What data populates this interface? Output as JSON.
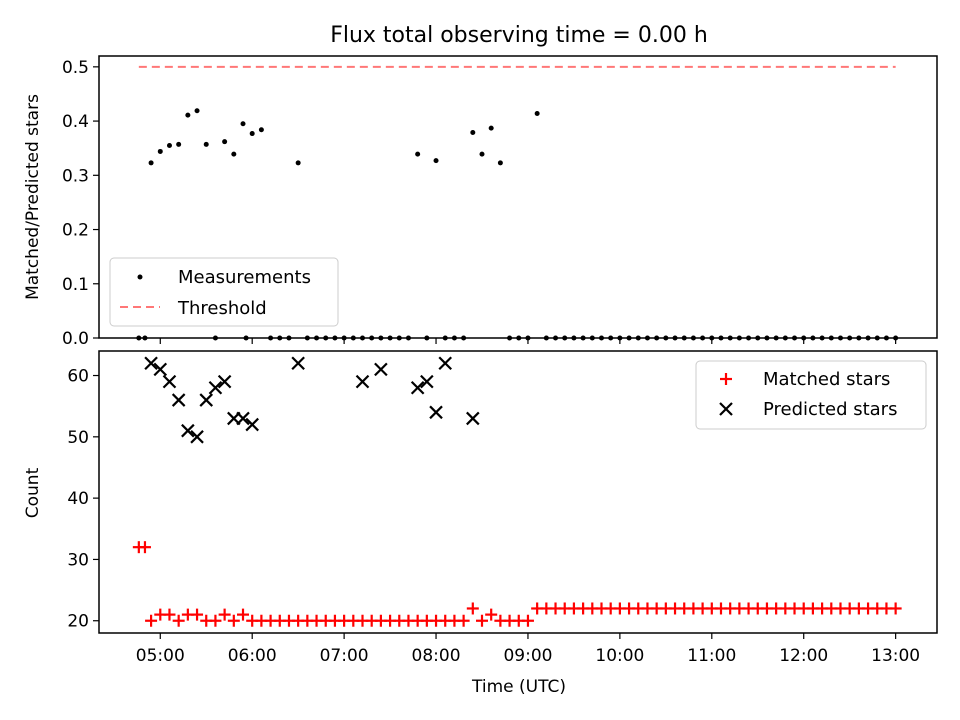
{
  "chart_data": {
    "title": "Flux total observing time = 0.00 h",
    "xlabel": "Time (UTC)",
    "x_ticks": [
      "05:00",
      "06:00",
      "07:00",
      "08:00",
      "09:00",
      "10:00",
      "11:00",
      "12:00",
      "13:00"
    ],
    "x_range": [
      "04:20",
      "13:27"
    ],
    "panels": [
      {
        "type": "scatter",
        "ylabel": "Matched/Predicted stars",
        "ylim": [
          0,
          0.52
        ],
        "yticks": [
          "0.0",
          "0.1",
          "0.2",
          "0.3",
          "0.4",
          "0.5"
        ],
        "legend_position": "lower-left",
        "series": [
          {
            "name": "Measurements",
            "kind": "points",
            "color": "#000000",
            "points": [
              [
                "04:46",
                0
              ],
              [
                "04:50",
                0
              ],
              [
                "04:54",
                0.323
              ],
              [
                "05:00",
                0.344
              ],
              [
                "05:06",
                0.355
              ],
              [
                "05:12",
                0.357
              ],
              [
                "05:18",
                0.411
              ],
              [
                "05:24",
                0.419
              ],
              [
                "05:30",
                0.357
              ],
              [
                "05:36",
                0
              ],
              [
                "05:42",
                0.362
              ],
              [
                "05:48",
                0.339
              ],
              [
                "05:54",
                0.395
              ],
              [
                "06:00",
                0.377
              ],
              [
                "05:56",
                0
              ],
              [
                "06:06",
                0.384
              ],
              [
                "06:12",
                0
              ],
              [
                "06:18",
                0
              ],
              [
                "06:24",
                0
              ],
              [
                "06:30",
                0.323
              ],
              [
                "06:36",
                0
              ],
              [
                "06:42",
                0
              ],
              [
                "06:48",
                0
              ],
              [
                "06:54",
                0
              ],
              [
                "07:00",
                0
              ],
              [
                "07:06",
                0
              ],
              [
                "07:12",
                0
              ],
              [
                "07:18",
                0
              ],
              [
                "07:24",
                0
              ],
              [
                "07:30",
                0
              ],
              [
                "07:36",
                0
              ],
              [
                "07:42",
                0
              ],
              [
                "07:48",
                0.339
              ],
              [
                "07:54",
                0
              ],
              [
                "08:00",
                0.327
              ],
              [
                "08:06",
                0
              ],
              [
                "08:12",
                0
              ],
              [
                "08:18",
                0
              ],
              [
                "08:24",
                0.379
              ],
              [
                "08:30",
                0.339
              ],
              [
                "08:36",
                0.387
              ],
              [
                "08:42",
                0.323
              ],
              [
                "08:48",
                0
              ],
              [
                "08:54",
                0
              ],
              [
                "09:00",
                0
              ],
              [
                "09:06",
                0.414
              ],
              [
                "09:12",
                0
              ],
              [
                "09:18",
                0
              ],
              [
                "09:24",
                0
              ],
              [
                "09:30",
                0
              ],
              [
                "09:36",
                0
              ],
              [
                "09:42",
                0
              ],
              [
                "09:48",
                0
              ],
              [
                "09:54",
                0
              ],
              [
                "10:00",
                0
              ],
              [
                "10:06",
                0
              ],
              [
                "10:12",
                0
              ],
              [
                "10:18",
                0
              ],
              [
                "10:24",
                0
              ],
              [
                "10:30",
                0
              ],
              [
                "10:36",
                0
              ],
              [
                "10:42",
                0
              ],
              [
                "10:48",
                0
              ],
              [
                "10:54",
                0
              ],
              [
                "11:00",
                0
              ],
              [
                "11:06",
                0
              ],
              [
                "11:12",
                0
              ],
              [
                "11:18",
                0
              ],
              [
                "11:24",
                0
              ],
              [
                "11:30",
                0
              ],
              [
                "11:36",
                0
              ],
              [
                "11:42",
                0
              ],
              [
                "11:48",
                0
              ],
              [
                "11:54",
                0
              ],
              [
                "12:00",
                0
              ],
              [
                "12:06",
                0
              ],
              [
                "12:12",
                0
              ],
              [
                "12:18",
                0
              ],
              [
                "12:24",
                0
              ],
              [
                "12:30",
                0
              ],
              [
                "12:36",
                0
              ],
              [
                "12:42",
                0
              ],
              [
                "12:48",
                0
              ],
              [
                "12:54",
                0
              ],
              [
                "13:00",
                0
              ]
            ]
          },
          {
            "name": "Threshold",
            "kind": "dashed-line",
            "color": "#ff7777",
            "x": [
              "04:46",
              "13:00"
            ],
            "y": [
              0.5,
              0.5
            ]
          }
        ]
      },
      {
        "type": "scatter",
        "ylabel": "Count",
        "ylim": [
          18,
          64
        ],
        "yticks": [
          "20",
          "30",
          "40",
          "50",
          "60"
        ],
        "legend_position": "upper-right",
        "series": [
          {
            "name": "Matched stars",
            "kind": "plus",
            "color": "#ff0000",
            "points": [
              [
                "04:46",
                32
              ],
              [
                "04:50",
                32
              ],
              [
                "04:54",
                20
              ],
              [
                "05:00",
                21
              ],
              [
                "05:06",
                21
              ],
              [
                "05:12",
                20
              ],
              [
                "05:18",
                21
              ],
              [
                "05:24",
                21
              ],
              [
                "05:30",
                20
              ],
              [
                "05:36",
                20
              ],
              [
                "05:42",
                21
              ],
              [
                "05:48",
                20
              ],
              [
                "05:54",
                21
              ],
              [
                "06:00",
                20
              ],
              [
                "06:06",
                20
              ],
              [
                "06:12",
                20
              ],
              [
                "06:18",
                20
              ],
              [
                "06:24",
                20
              ],
              [
                "06:30",
                20
              ],
              [
                "06:36",
                20
              ],
              [
                "06:42",
                20
              ],
              [
                "06:48",
                20
              ],
              [
                "06:54",
                20
              ],
              [
                "07:00",
                20
              ],
              [
                "07:06",
                20
              ],
              [
                "07:12",
                20
              ],
              [
                "07:18",
                20
              ],
              [
                "07:24",
                20
              ],
              [
                "07:30",
                20
              ],
              [
                "07:36",
                20
              ],
              [
                "07:42",
                20
              ],
              [
                "07:48",
                20
              ],
              [
                "07:54",
                20
              ],
              [
                "08:00",
                20
              ],
              [
                "08:06",
                20
              ],
              [
                "08:12",
                20
              ],
              [
                "08:18",
                20
              ],
              [
                "08:24",
                22
              ],
              [
                "08:30",
                20
              ],
              [
                "08:36",
                21
              ],
              [
                "08:42",
                20
              ],
              [
                "08:48",
                20
              ],
              [
                "08:54",
                20
              ],
              [
                "09:00",
                20
              ],
              [
                "09:06",
                22
              ],
              [
                "09:12",
                22
              ],
              [
                "09:18",
                22
              ],
              [
                "09:24",
                22
              ],
              [
                "09:30",
                22
              ],
              [
                "09:36",
                22
              ],
              [
                "09:42",
                22
              ],
              [
                "09:48",
                22
              ],
              [
                "09:54",
                22
              ],
              [
                "10:00",
                22
              ],
              [
                "10:06",
                22
              ],
              [
                "10:12",
                22
              ],
              [
                "10:18",
                22
              ],
              [
                "10:24",
                22
              ],
              [
                "10:30",
                22
              ],
              [
                "10:36",
                22
              ],
              [
                "10:42",
                22
              ],
              [
                "10:48",
                22
              ],
              [
                "10:54",
                22
              ],
              [
                "11:00",
                22
              ],
              [
                "11:06",
                22
              ],
              [
                "11:12",
                22
              ],
              [
                "11:18",
                22
              ],
              [
                "11:24",
                22
              ],
              [
                "11:30",
                22
              ],
              [
                "11:36",
                22
              ],
              [
                "11:42",
                22
              ],
              [
                "11:48",
                22
              ],
              [
                "11:54",
                22
              ],
              [
                "12:00",
                22
              ],
              [
                "12:06",
                22
              ],
              [
                "12:12",
                22
              ],
              [
                "12:18",
                22
              ],
              [
                "12:24",
                22
              ],
              [
                "12:30",
                22
              ],
              [
                "12:36",
                22
              ],
              [
                "12:42",
                22
              ],
              [
                "12:48",
                22
              ],
              [
                "12:54",
                22
              ],
              [
                "13:00",
                22
              ]
            ]
          },
          {
            "name": "Predicted stars",
            "kind": "x",
            "color": "#000000",
            "points": [
              [
                "04:54",
                62
              ],
              [
                "05:00",
                61
              ],
              [
                "05:06",
                59
              ],
              [
                "05:12",
                56
              ],
              [
                "05:18",
                51
              ],
              [
                "05:24",
                50
              ],
              [
                "05:30",
                56
              ],
              [
                "05:36",
                58
              ],
              [
                "05:42",
                59
              ],
              [
                "05:48",
                53
              ],
              [
                "05:54",
                53
              ],
              [
                "06:00",
                52
              ],
              [
                "06:30",
                62
              ],
              [
                "07:12",
                59
              ],
              [
                "07:24",
                61
              ],
              [
                "07:48",
                58
              ],
              [
                "07:54",
                59
              ],
              [
                "08:00",
                54
              ],
              [
                "08:06",
                62
              ],
              [
                "08:24",
                53
              ]
            ]
          }
        ]
      }
    ]
  }
}
